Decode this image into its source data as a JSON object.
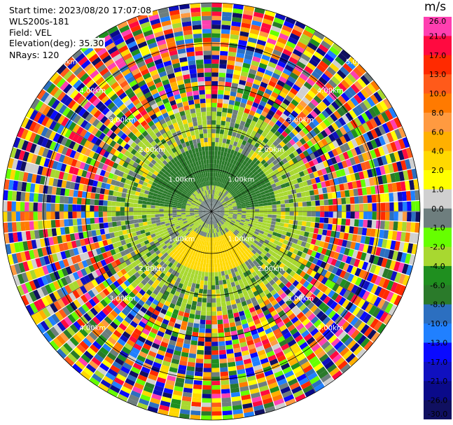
{
  "info": {
    "start_time": "Start time: 2023/08/20 17:07:08",
    "instrument": "WLS200s-181",
    "field": "Field: VEL",
    "elevation": "Elevation(deg): 35.30",
    "nrays": "NRays: 120"
  },
  "colorbar": {
    "unit": "m/s",
    "ticks": [
      "26.0",
      "21.0",
      "17.0",
      "13.0",
      "10.0",
      "8.0",
      "6.0",
      "4.0",
      "2.0",
      "1.0",
      "0.0",
      "-1.0",
      "-2.0",
      "-4.0",
      "-6.0",
      "-8.0",
      "-10.0",
      "-13.0",
      "-17.0",
      "-21.0",
      "-26.0",
      "-30.0"
    ],
    "colors": [
      "#ff3fb0",
      "#ff0a40",
      "#ff2a00",
      "#ff5a1a",
      "#ff7a00",
      "#ff9a40",
      "#ffb000",
      "#ffd800",
      "#ffff00",
      "#d0d0d0",
      "#6e7e7e",
      "#66ff00",
      "#a8d830",
      "#1f8f1f",
      "#2a7a2a",
      "#2c6fc0",
      "#2080ff",
      "#0a0aff",
      "#1010c0",
      "#0a0a8a",
      "#101060"
    ]
  },
  "chart_data": {
    "type": "heatmap",
    "projection": "polar PPI",
    "field": "VEL",
    "nrays": 120,
    "range_ring_labels": [
      "1.00km",
      "1.00km",
      "1.00km",
      "1.00km",
      "2.00km",
      "2.00km",
      "2.00km",
      "2.00km",
      "3.00km",
      "3.00km",
      "3.00km",
      "3.00km",
      "4.00km",
      "4.00km",
      "4.00km",
      "4.00km",
      "5.00km",
      "5.00km"
    ],
    "zones": [
      {
        "region": "inner north",
        "value": -6.0
      },
      {
        "region": "inner south",
        "value": 2.0
      },
      {
        "region": "inner center",
        "value": 0.0
      },
      {
        "region": "inner ring",
        "value": -2.0
      },
      {
        "region": "mid ring",
        "value": 4.0
      },
      {
        "region": "outer",
        "value": "noise"
      }
    ]
  }
}
